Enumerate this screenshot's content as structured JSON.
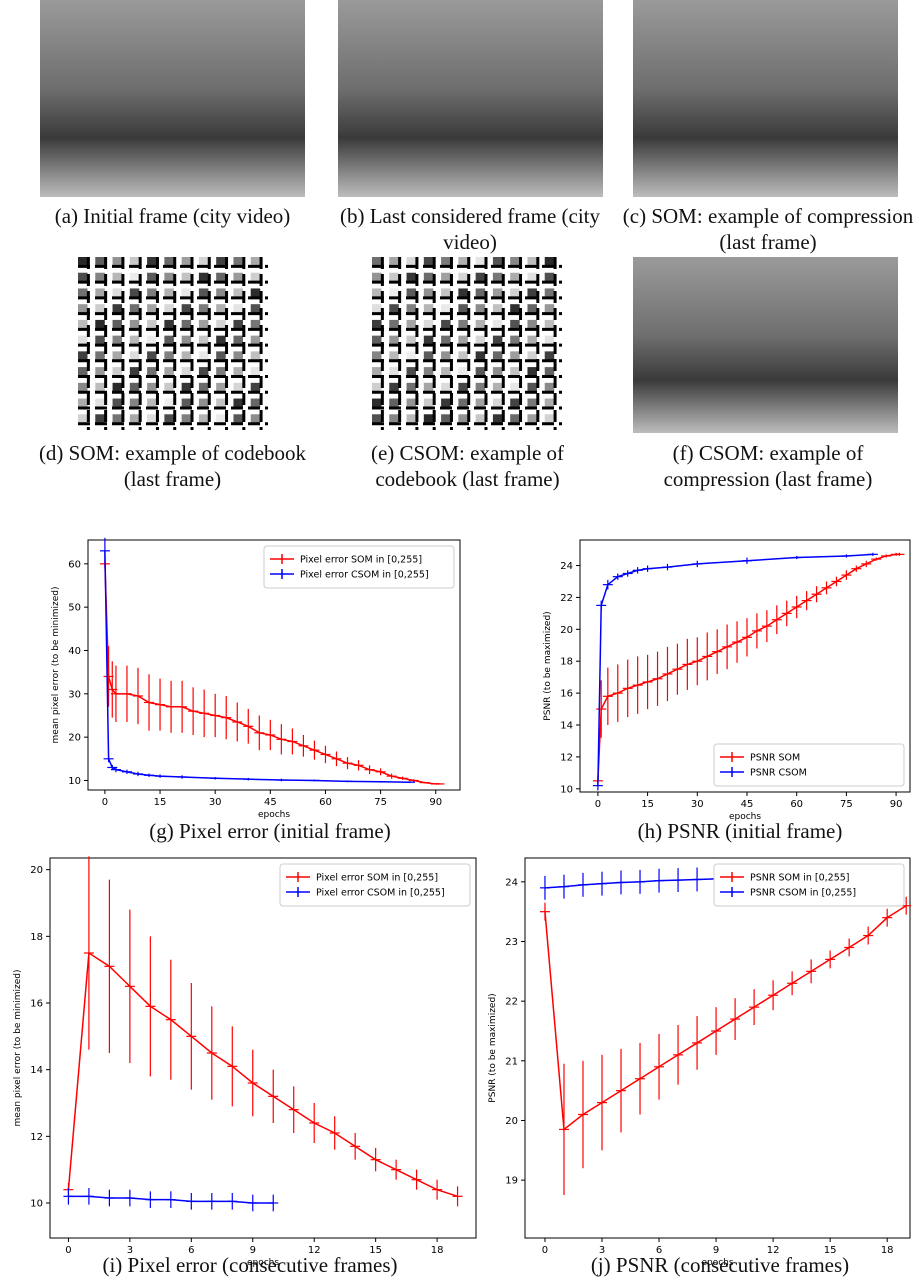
{
  "panels": [
    {
      "caption": "(a) Initial frame (city video)"
    },
    {
      "caption": "(b) Last considered frame (city video)"
    },
    {
      "caption": "(c) SOM: example of compression (last frame)"
    },
    {
      "caption": "(d) SOM: example of codebook (last frame)"
    },
    {
      "caption": "(e) CSOM: example of codebook (last frame)"
    },
    {
      "caption": "(f) CSOM: example of compression (last frame)"
    }
  ],
  "chart_data": [
    {
      "type": "errorbar",
      "caption": "(g) Pixel error (initial frame)",
      "xlabel": "epochs",
      "ylabel": "mean pixel error (to be minimized)",
      "legend": "upper right",
      "xlim": [
        -4.6,
        96.6
      ],
      "ylim": [
        7.8,
        65.5
      ],
      "xticks": [
        0,
        15,
        30,
        45,
        60,
        75,
        90
      ],
      "yticks": [
        10,
        20,
        30,
        40,
        50,
        60
      ],
      "series": [
        {
          "name": "Pixel error SOM in [0,255]",
          "color": "#ff0000",
          "x": [
            0,
            1,
            2,
            3,
            6,
            9,
            12,
            15,
            18,
            21,
            24,
            27,
            30,
            33,
            36,
            39,
            42,
            45,
            48,
            51,
            54,
            57,
            60,
            63,
            66,
            69,
            72,
            75,
            78,
            81,
            84,
            87,
            90,
            91
          ],
          "values": [
            60,
            34,
            31,
            30,
            30,
            29.5,
            28,
            27.5,
            27,
            27,
            26,
            25.5,
            25,
            24.5,
            23.5,
            22.5,
            21,
            20.5,
            19.5,
            19,
            18,
            17,
            16,
            15,
            14,
            13.5,
            12.5,
            12,
            11,
            10.5,
            10,
            9.5,
            9.2,
            9.2
          ],
          "errors": [
            1,
            7,
            6.5,
            6.5,
            6.5,
            6.5,
            6.5,
            6,
            6,
            6,
            5.5,
            5.5,
            5,
            5,
            4.5,
            4,
            4,
            3.5,
            3.5,
            3,
            2.5,
            2.2,
            2,
            1.7,
            1.4,
            1.2,
            1,
            0.8,
            0.6,
            0.4,
            0.3,
            0.2,
            0.1,
            0.1
          ]
        },
        {
          "name": "Pixel error CSOM in [0,255]",
          "color": "#0000ff",
          "x": [
            0,
            1,
            2,
            3,
            6,
            9,
            12,
            15,
            21,
            30,
            39,
            48,
            57,
            66,
            75,
            83
          ],
          "values": [
            63,
            15,
            13,
            12.5,
            12,
            11.5,
            11.2,
            11,
            10.8,
            10.5,
            10.3,
            10.1,
            10,
            9.8,
            9.7,
            9.6
          ],
          "errors": [
            3,
            0.8,
            0.6,
            0.6,
            0.5,
            0.5,
            0.4,
            0.4,
            0.4,
            0.3,
            0.3,
            0.3,
            0.2,
            0.2,
            0.2,
            0.2
          ]
        }
      ]
    },
    {
      "type": "errorbar",
      "caption": "(h) PSNR (initial frame)",
      "xlabel": "epochs",
      "ylabel": "PSNR (to be maximized)",
      "legend": "lower right",
      "xlim": [
        -5.4,
        94.2
      ],
      "ylim": [
        9.8,
        25.6
      ],
      "xticks": [
        0,
        15,
        30,
        45,
        60,
        75,
        90
      ],
      "yticks": [
        10,
        12,
        14,
        16,
        18,
        20,
        22,
        24
      ],
      "series": [
        {
          "name": "PSNR SOM",
          "color": "#ff0000",
          "x": [
            0,
            1,
            3,
            6,
            9,
            12,
            15,
            18,
            21,
            24,
            27,
            30,
            33,
            36,
            39,
            42,
            45,
            48,
            51,
            54,
            57,
            60,
            63,
            66,
            69,
            72,
            75,
            78,
            81,
            84,
            87,
            90,
            91
          ],
          "values": [
            10.5,
            15,
            15.8,
            16,
            16.3,
            16.5,
            16.7,
            16.9,
            17.2,
            17.5,
            17.8,
            18,
            18.3,
            18.6,
            18.9,
            19.2,
            19.5,
            19.9,
            20.2,
            20.6,
            21,
            21.4,
            21.8,
            22.2,
            22.6,
            23,
            23.4,
            23.8,
            24.1,
            24.4,
            24.6,
            24.7,
            24.7
          ],
          "errors": [
            0.3,
            1.8,
            1.8,
            1.8,
            1.8,
            1.8,
            1.7,
            1.7,
            1.7,
            1.6,
            1.6,
            1.5,
            1.5,
            1.4,
            1.4,
            1.3,
            1.2,
            1.1,
            1,
            0.9,
            0.8,
            0.7,
            0.6,
            0.5,
            0.4,
            0.3,
            0.3,
            0.2,
            0.2,
            0.1,
            0.1,
            0.1,
            0.1
          ]
        },
        {
          "name": "PSNR CSOM",
          "color": "#0000ff",
          "x": [
            0,
            1,
            3,
            6,
            9,
            12,
            15,
            21,
            30,
            45,
            60,
            75,
            83
          ],
          "values": [
            10.2,
            21.5,
            22.8,
            23.3,
            23.5,
            23.7,
            23.8,
            23.9,
            24.1,
            24.3,
            24.5,
            24.6,
            24.7
          ],
          "errors": [
            0.3,
            0.3,
            0.3,
            0.2,
            0.2,
            0.2,
            0.2,
            0.2,
            0.2,
            0.2,
            0.1,
            0.1,
            0.1
          ]
        }
      ]
    },
    {
      "type": "errorbar",
      "caption": "(i) Pixel error (consecutive frames)",
      "xlabel": "epochs",
      "ylabel": "mean pixel error (to be minimized)",
      "legend": "upper right",
      "xlim": [
        -0.9,
        19.9
      ],
      "ylim": [
        8.95,
        20.35
      ],
      "xticks": [
        0,
        3,
        6,
        9,
        12,
        15,
        18
      ],
      "yticks": [
        10,
        12,
        14,
        16,
        18,
        20
      ],
      "series": [
        {
          "name": "Pixel error SOM in [0,255]",
          "color": "#ff0000",
          "x": [
            0,
            1,
            2,
            3,
            4,
            5,
            6,
            7,
            8,
            9,
            10,
            11,
            12,
            13,
            14,
            15,
            16,
            17,
            18,
            19
          ],
          "values": [
            10.4,
            17.5,
            17.1,
            16.5,
            15.9,
            15.5,
            15,
            14.5,
            14.1,
            13.6,
            13.2,
            12.8,
            12.4,
            12.1,
            11.7,
            11.3,
            11,
            10.7,
            10.4,
            10.2
          ],
          "errors": [
            0.2,
            2.9,
            2.6,
            2.3,
            2.1,
            1.8,
            1.6,
            1.4,
            1.2,
            1,
            0.8,
            0.7,
            0.6,
            0.5,
            0.4,
            0.35,
            0.3,
            0.3,
            0.3,
            0.3
          ]
        },
        {
          "name": "Pixel error CSOM in [0,255]",
          "color": "#0000ff",
          "x": [
            0,
            1,
            2,
            3,
            4,
            5,
            6,
            7,
            8,
            9,
            10
          ],
          "values": [
            10.2,
            10.2,
            10.15,
            10.15,
            10.1,
            10.1,
            10.05,
            10.05,
            10.05,
            10,
            10
          ],
          "errors": [
            0.25,
            0.25,
            0.25,
            0.25,
            0.25,
            0.25,
            0.25,
            0.25,
            0.25,
            0.25,
            0.25
          ]
        }
      ]
    },
    {
      "type": "errorbar",
      "caption": "(j) PSNR (consecutive frames)",
      "xlabel": "epochs",
      "ylabel": "PSNR (to be maximized)",
      "legend": "upper right",
      "xlim": [
        -1.05,
        19.2
      ],
      "ylim": [
        18.03,
        24.4
      ],
      "xticks": [
        0,
        3,
        6,
        9,
        12,
        15,
        18
      ],
      "yticks": [
        19,
        20,
        21,
        22,
        23,
        24
      ],
      "series": [
        {
          "name": "PSNR SOM in [0,255]",
          "color": "#ff0000",
          "x": [
            0,
            1,
            2,
            3,
            4,
            5,
            6,
            7,
            8,
            9,
            10,
            11,
            12,
            13,
            14,
            15,
            16,
            17,
            18,
            19
          ],
          "values": [
            23.5,
            19.85,
            20.1,
            20.3,
            20.5,
            20.7,
            20.9,
            21.1,
            21.3,
            21.5,
            21.7,
            21.9,
            22.1,
            22.3,
            22.5,
            22.7,
            22.9,
            23.1,
            23.4,
            23.6
          ],
          "errors": [
            0.15,
            1.1,
            0.9,
            0.8,
            0.7,
            0.6,
            0.55,
            0.5,
            0.45,
            0.4,
            0.35,
            0.3,
            0.25,
            0.2,
            0.2,
            0.15,
            0.15,
            0.15,
            0.15,
            0.15
          ]
        },
        {
          "name": "PSNR CSOM in [0,255]",
          "color": "#0000ff",
          "x": [
            0,
            1,
            2,
            3,
            4,
            5,
            6,
            7,
            8,
            9,
            10
          ],
          "values": [
            23.9,
            23.92,
            23.95,
            23.97,
            23.99,
            24,
            24.02,
            24.03,
            24.04,
            24.05,
            24.06
          ],
          "errors": [
            0.2,
            0.2,
            0.2,
            0.2,
            0.2,
            0.2,
            0.2,
            0.2,
            0.2,
            0.2,
            0.2
          ]
        }
      ]
    }
  ]
}
